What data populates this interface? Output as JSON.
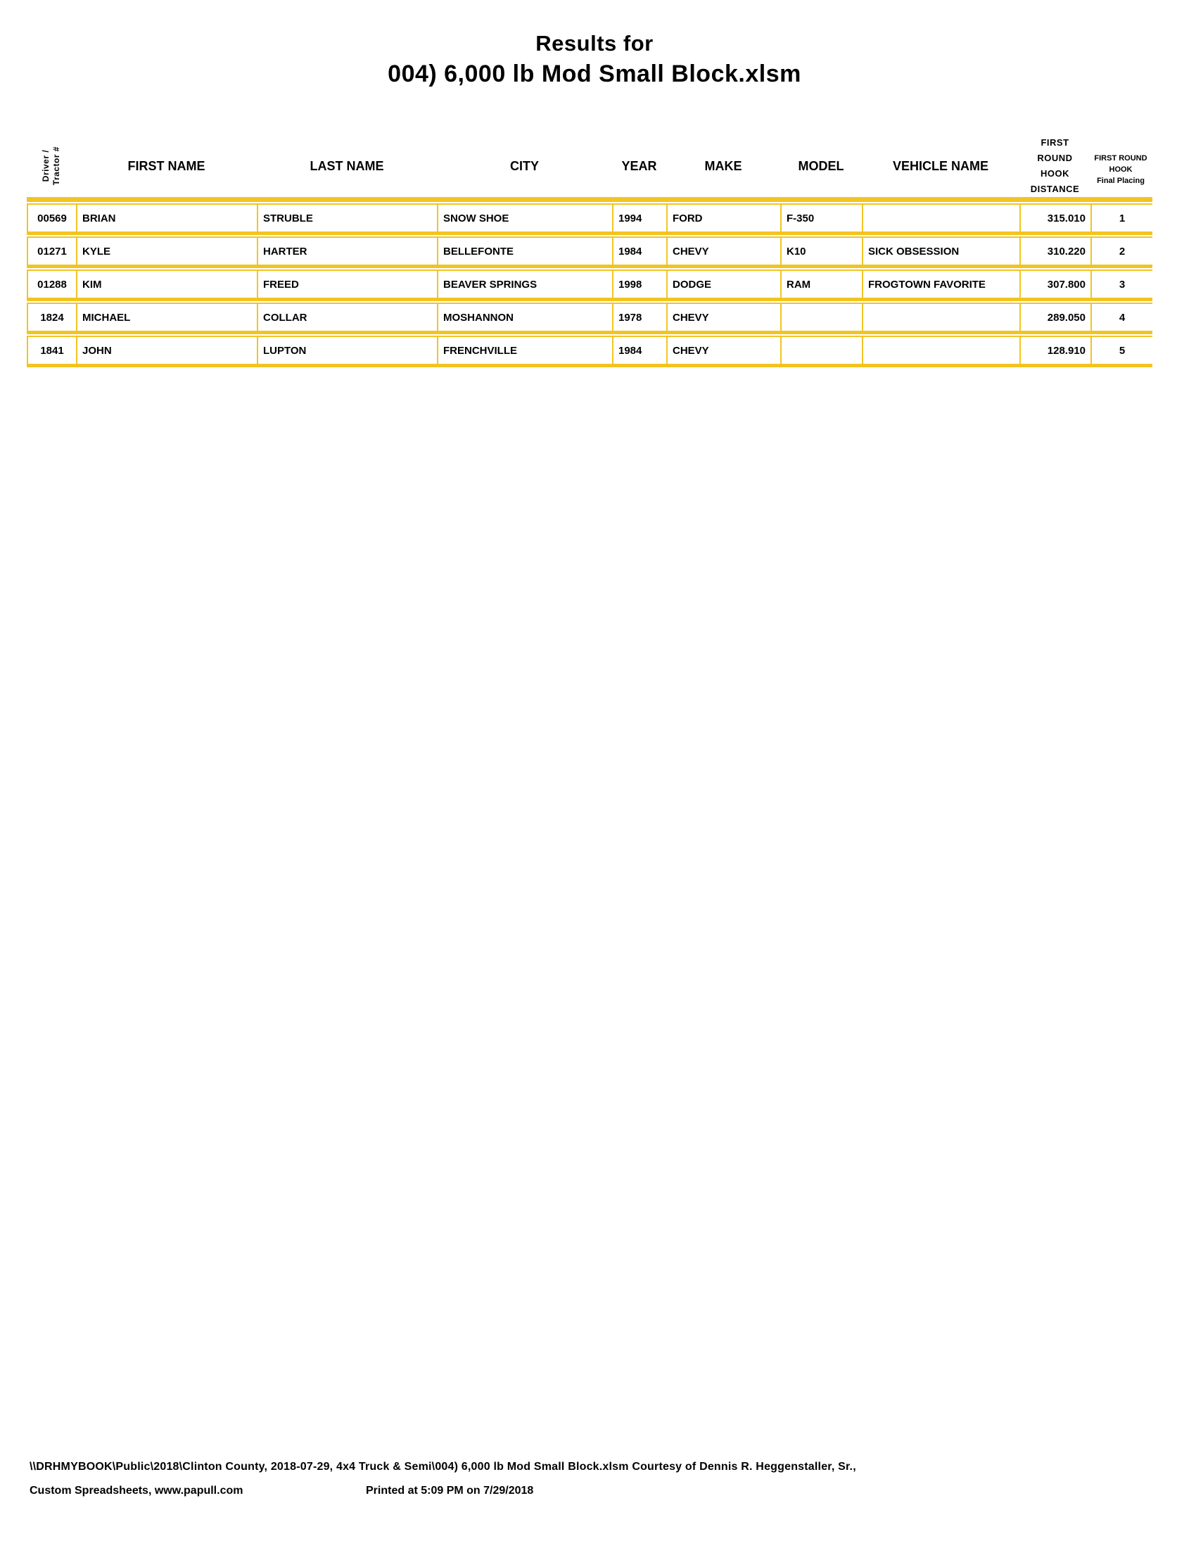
{
  "colors": {
    "border_gold": "#F2C422",
    "text": "#000000"
  },
  "page": {
    "title_line1": "Results for",
    "title_line2": "004) 6,000 lb Mod Small Block.xlsm"
  },
  "table": {
    "columns": [
      {
        "id": "driver_tractor_number",
        "header_lines": [
          "Driver /",
          "Tractor #"
        ],
        "header_style": "vertical",
        "align": "center"
      },
      {
        "id": "first_name",
        "label": "FIRST NAME",
        "align": "left"
      },
      {
        "id": "last_name",
        "label": "LAST NAME",
        "align": "left"
      },
      {
        "id": "city",
        "label": "CITY",
        "align": "left"
      },
      {
        "id": "year",
        "label": "YEAR",
        "align": "left"
      },
      {
        "id": "make",
        "label": "MAKE",
        "align": "left"
      },
      {
        "id": "model",
        "label": "MODEL",
        "align": "left"
      },
      {
        "id": "vehicle_name",
        "label": "VEHICLE NAME",
        "align": "left"
      },
      {
        "id": "first_round_hook_distance",
        "header_lines": [
          "FIRST",
          "ROUND",
          "HOOK",
          "DISTANCE"
        ],
        "header_style": "stacked",
        "align": "right"
      },
      {
        "id": "first_round_hook_final_placing",
        "header_lines": [
          "FIRST ROUND",
          "HOOK",
          "Final Placing"
        ],
        "header_style": "stacked-small",
        "align": "center"
      }
    ],
    "rows": [
      [
        "00569",
        "BRIAN",
        "STRUBLE",
        "SNOW SHOE",
        "1994",
        "FORD",
        "F-350",
        "",
        "315.010",
        "1"
      ],
      [
        "01271",
        "KYLE",
        "HARTER",
        "BELLEFONTE",
        "1984",
        "CHEVY",
        "K10",
        "SICK OBSESSION",
        "310.220",
        "2"
      ],
      [
        "01288",
        "KIM",
        "FREED",
        "BEAVER SPRINGS",
        "1998",
        "DODGE",
        "RAM",
        "FROGTOWN FAVORITE",
        "307.800",
        "3"
      ],
      [
        "1824",
        "MICHAEL",
        "COLLAR",
        "MOSHANNON",
        "1978",
        "CHEVY",
        "",
        "",
        "289.050",
        "4"
      ],
      [
        "1841",
        "JOHN",
        "LUPTON",
        "FRENCHVILLE",
        "1984",
        "CHEVY",
        "",
        "",
        "128.910",
        "5"
      ]
    ]
  },
  "footer": {
    "path_line": "\\\\DRHMYBOOK\\Public\\2018\\Clinton County, 2018-07-29, 4x4 Truck & Semi\\004) 6,000 lb Mod Small Block.xlsm  Courtesy of Dennis R. Heggenstaller, Sr.,",
    "custom_line": "Custom Spreadsheets, www.papull.com",
    "printed_line": "Printed at 5:09 PM on 7/29/2018"
  }
}
